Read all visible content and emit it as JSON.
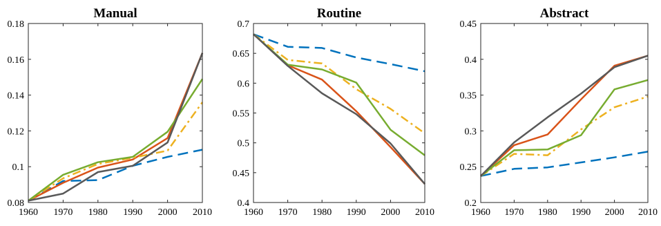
{
  "chart_data": [
    {
      "type": "line",
      "title": "Manual",
      "xlabel": "",
      "ylabel": "",
      "x": [
        1960,
        1970,
        1980,
        1990,
        2000,
        2010
      ],
      "xticks": [
        "1960",
        "1970",
        "1980",
        "1990",
        "2000",
        "2010"
      ],
      "xlim": [
        1960,
        2010
      ],
      "ylim": [
        0.08,
        0.18
      ],
      "yticks": [
        "0.08",
        "0.1",
        "0.12",
        "0.14",
        "0.16",
        "0.18"
      ],
      "grid": false,
      "series": [
        {
          "color": "#0072BD",
          "dash": "dashed",
          "values": [
            0.081,
            0.092,
            0.0925,
            0.1005,
            0.1055,
            0.1095
          ]
        },
        {
          "color": "#D95319",
          "dash": "solid",
          "values": [
            0.081,
            0.091,
            0.0995,
            0.104,
            0.116,
            0.1635
          ]
        },
        {
          "color": "#EDB120",
          "dash": "dashdot",
          "values": [
            0.081,
            0.0935,
            0.1015,
            0.105,
            0.109,
            0.136
          ]
        },
        {
          "color": "#77AC30",
          "dash": "solid",
          "values": [
            0.081,
            0.0955,
            0.1025,
            0.1055,
            0.1195,
            0.149
          ]
        },
        {
          "color": "#595959",
          "dash": "solid",
          "values": [
            0.081,
            0.085,
            0.097,
            0.1005,
            0.1135,
            0.1635
          ]
        }
      ]
    },
    {
      "type": "line",
      "title": "Routine",
      "xlabel": "",
      "ylabel": "",
      "x": [
        1960,
        1970,
        1980,
        1990,
        2000,
        2010
      ],
      "xticks": [
        "1960",
        "1970",
        "1980",
        "1990",
        "2000",
        "2010"
      ],
      "xlim": [
        1960,
        2010
      ],
      "ylim": [
        0.4,
        0.7
      ],
      "yticks": [
        "0.4",
        "0.45",
        "0.5",
        "0.55",
        "0.6",
        "0.65",
        "0.7"
      ],
      "grid": false,
      "series": [
        {
          "color": "#0072BD",
          "dash": "dashed",
          "values": [
            0.682,
            0.661,
            0.659,
            0.643,
            0.632,
            0.62
          ]
        },
        {
          "color": "#D95319",
          "dash": "solid",
          "values": [
            0.682,
            0.63,
            0.606,
            0.553,
            0.493,
            0.431
          ]
        },
        {
          "color": "#EDB120",
          "dash": "dashdot",
          "values": [
            0.682,
            0.639,
            0.633,
            0.59,
            0.557,
            0.516
          ]
        },
        {
          "color": "#77AC30",
          "dash": "solid",
          "values": [
            0.682,
            0.631,
            0.623,
            0.601,
            0.522,
            0.479
          ]
        },
        {
          "color": "#595959",
          "dash": "solid",
          "values": [
            0.682,
            0.629,
            0.583,
            0.548,
            0.499,
            0.431
          ]
        }
      ]
    },
    {
      "type": "line",
      "title": "Abstract",
      "xlabel": "",
      "ylabel": "",
      "x": [
        1960,
        1970,
        1980,
        1990,
        2000,
        2010
      ],
      "xticks": [
        "1960",
        "1970",
        "1980",
        "1990",
        "2000",
        "2010"
      ],
      "xlim": [
        1960,
        2010
      ],
      "ylim": [
        0.2,
        0.45
      ],
      "yticks": [
        "0.2",
        "0.25",
        "0.3",
        "0.35",
        "0.4",
        "0.45"
      ],
      "grid": false,
      "series": [
        {
          "color": "#0072BD",
          "dash": "dashed",
          "values": [
            0.237,
            0.247,
            0.249,
            0.256,
            0.263,
            0.271
          ]
        },
        {
          "color": "#D95319",
          "dash": "solid",
          "values": [
            0.237,
            0.28,
            0.295,
            0.344,
            0.391,
            0.405
          ]
        },
        {
          "color": "#EDB120",
          "dash": "dashdot",
          "values": [
            0.237,
            0.268,
            0.266,
            0.302,
            0.333,
            0.348
          ]
        },
        {
          "color": "#77AC30",
          "dash": "solid",
          "values": [
            0.237,
            0.273,
            0.274,
            0.294,
            0.358,
            0.371
          ]
        },
        {
          "color": "#595959",
          "dash": "solid",
          "values": [
            0.237,
            0.284,
            0.319,
            0.352,
            0.389,
            0.405
          ]
        }
      ]
    }
  ]
}
